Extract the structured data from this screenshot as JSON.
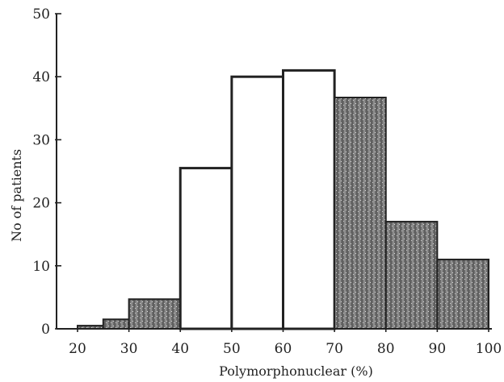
{
  "chart_data": {
    "type": "bar",
    "title": "",
    "xlabel": "Polymorphonuclear (%)",
    "ylabel": "No of patients",
    "xlim": [
      20,
      100
    ],
    "ylim": [
      0,
      50
    ],
    "xticks": [
      "20",
      "30",
      "40",
      "50",
      "60",
      "70",
      "80",
      "90",
      "100"
    ],
    "yticks": [
      "0",
      "10",
      "20",
      "30",
      "40",
      "50"
    ],
    "grid": false,
    "legend": "none",
    "bins": [
      {
        "x_start": 20,
        "x_end": 25,
        "value": 0.5,
        "group": "shaded"
      },
      {
        "x_start": 25,
        "x_end": 30,
        "value": 1.5,
        "group": "shaded"
      },
      {
        "x_start": 30,
        "x_end": 40,
        "value": 4.7,
        "group": "shaded"
      },
      {
        "x_start": 40,
        "x_end": 50,
        "value": 25.5,
        "group": "open"
      },
      {
        "x_start": 50,
        "x_end": 60,
        "value": 40,
        "group": "open"
      },
      {
        "x_start": 60,
        "x_end": 70,
        "value": 41,
        "group": "open"
      },
      {
        "x_start": 70,
        "x_end": 80,
        "value": 36.7,
        "group": "shaded"
      },
      {
        "x_start": 80,
        "x_end": 90,
        "value": 17,
        "group": "shaded"
      },
      {
        "x_start": 90,
        "x_end": 100,
        "value": 11,
        "group": "shaded"
      }
    ],
    "colors": {
      "shaded": "#6e6e6e",
      "open": "#ffffff",
      "axis": "#222222"
    }
  }
}
